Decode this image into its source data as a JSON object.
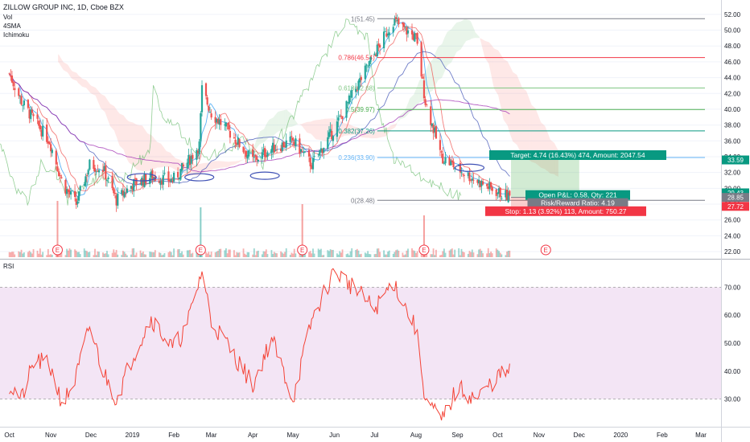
{
  "header": {
    "title": "ZILLOW GROUP INC, 1D, Cboe BZX",
    "indicators": [
      "Vol",
      "4SMA",
      "Ichimoku"
    ]
  },
  "colors": {
    "up": "#26a69a",
    "down": "#ef5350",
    "rsi_band": "#f3e5f5",
    "rsi_line": "#f44336",
    "fib_lines": [
      "#787b86",
      "#f23645",
      "#81c784",
      "#4caf50",
      "#089981",
      "#64b5f6",
      "#787b86"
    ],
    "target_bg": "#4caf50",
    "stop_bg": "#f44336"
  },
  "chart_data": [
    {
      "type": "candlestick",
      "title": "ZILLOW GROUP INC, 1D, Cboe BZX",
      "y_axis_ticks": [
        "52.00",
        "50.00",
        "48.00",
        "46.00",
        "44.00",
        "42.00",
        "40.00",
        "38.00",
        "36.00",
        "34.00",
        "32.00",
        "30.00",
        "28.00",
        "26.00",
        "24.00",
        "22.00"
      ],
      "x_axis_ticks": [
        "Oct",
        "Nov",
        "Dec",
        "2019",
        "Feb",
        "Mar",
        "Apr",
        "May",
        "Jun",
        "Jul",
        "Aug",
        "Sep",
        "Oct",
        "Nov",
        "Dec",
        "2020",
        "Feb",
        "Mar"
      ],
      "ylim": [
        21.5,
        53
      ],
      "price_series": [
        [
          "2018-10-01",
          44.5
        ],
        [
          "2018-10-10",
          41.0
        ],
        [
          "2018-10-20",
          38.5
        ],
        [
          "2018-10-31",
          36.0
        ],
        [
          "2018-11-10",
          30.5
        ],
        [
          "2018-11-20",
          28.0
        ],
        [
          "2018-11-30",
          33.0
        ],
        [
          "2018-12-10",
          32.5
        ],
        [
          "2018-12-20",
          28.5
        ],
        [
          "2019-01-01",
          30.5
        ],
        [
          "2019-01-15",
          31.5
        ],
        [
          "2019-01-31",
          31.0
        ],
        [
          "2019-02-10",
          33.0
        ],
        [
          "2019-02-20",
          35.5
        ],
        [
          "2019-02-22",
          42.5
        ],
        [
          "2019-03-01",
          39.5
        ],
        [
          "2019-03-15",
          37.0
        ],
        [
          "2019-04-01",
          33.5
        ],
        [
          "2019-04-15",
          35.0
        ],
        [
          "2019-05-01",
          36.0
        ],
        [
          "2019-05-15",
          33.0
        ],
        [
          "2019-06-01",
          37.5
        ],
        [
          "2019-06-15",
          42.0
        ],
        [
          "2019-07-01",
          47.0
        ],
        [
          "2019-07-15",
          51.2
        ],
        [
          "2019-08-01",
          49.0
        ],
        [
          "2019-08-08",
          41.0
        ],
        [
          "2019-08-20",
          34.0
        ],
        [
          "2019-09-01",
          32.5
        ],
        [
          "2019-09-15",
          31.0
        ],
        [
          "2019-10-01",
          29.5
        ],
        [
          "2019-10-10",
          28.9
        ]
      ],
      "fibonacci": [
        {
          "label": "1(51.45)",
          "value": 51.45
        },
        {
          "label": "0.786(46.54)",
          "value": 46.54
        },
        {
          "label": "0.618(42.68)",
          "value": 42.68
        },
        {
          "label": "0.5(39.97)",
          "value": 39.97
        },
        {
          "label": "0.382(37.26)",
          "value": 37.26
        },
        {
          "label": "0.236(33.90)",
          "value": 33.9
        },
        {
          "label": "0(28.48)",
          "value": 28.48
        }
      ],
      "price_labels": [
        {
          "value": "33.59",
          "color": "#089981"
        },
        {
          "value": "29.43",
          "color": "#089981"
        },
        {
          "value": "28.85",
          "color": "#787b86"
        },
        {
          "value": "27.72",
          "color": "#f23645"
        }
      ],
      "position": {
        "target_label": "Target: 4.74 (16.43%) 474, Amount: 2047.54",
        "pnl_label": "Open P&L: 0.58, Qty: 221",
        "rr_label": "Risk/Reward Ratio: 4.19",
        "stop_label": "Stop: 1.13 (3.92%) 113, Amount: 750.27",
        "entry": 28.85,
        "target": 33.59,
        "stop": 27.72
      },
      "earnings_markers": [
        "E",
        "E",
        "E",
        "E",
        "E"
      ]
    },
    {
      "type": "line",
      "title": "RSI",
      "y_axis_ticks": [
        "70.00",
        "60.00",
        "50.00",
        "40.00",
        "30.00"
      ],
      "ylim": [
        21,
        79
      ],
      "band": [
        30,
        70
      ],
      "series": [
        {
          "values": [
            [
              "2018-10-01",
              35
            ],
            [
              "2018-10-10",
              30
            ],
            [
              "2018-10-20",
              44
            ],
            [
              "2018-10-31",
              42
            ],
            [
              "2018-11-10",
              28
            ],
            [
              "2018-11-20",
              38
            ],
            [
              "2018-11-30",
              56
            ],
            [
              "2018-12-10",
              40
            ],
            [
              "2018-12-20",
              30
            ],
            [
              "2019-01-01",
              45
            ],
            [
              "2019-01-15",
              59
            ],
            [
              "2019-01-31",
              48
            ],
            [
              "2019-02-10",
              55
            ],
            [
              "2019-02-22",
              76
            ],
            [
              "2019-03-01",
              58
            ],
            [
              "2019-03-15",
              48
            ],
            [
              "2019-04-01",
              35
            ],
            [
              "2019-04-15",
              52
            ],
            [
              "2019-05-01",
              30
            ],
            [
              "2019-05-15",
              58
            ],
            [
              "2019-06-01",
              76
            ],
            [
              "2019-06-15",
              70
            ],
            [
              "2019-07-01",
              62
            ],
            [
              "2019-07-15",
              72
            ],
            [
              "2019-08-01",
              55
            ],
            [
              "2019-08-08",
              30
            ],
            [
              "2019-08-20",
              22
            ],
            [
              "2019-09-01",
              34
            ],
            [
              "2019-09-15",
              30
            ],
            [
              "2019-10-01",
              38
            ],
            [
              "2019-10-10",
              40
            ]
          ]
        }
      ]
    }
  ]
}
